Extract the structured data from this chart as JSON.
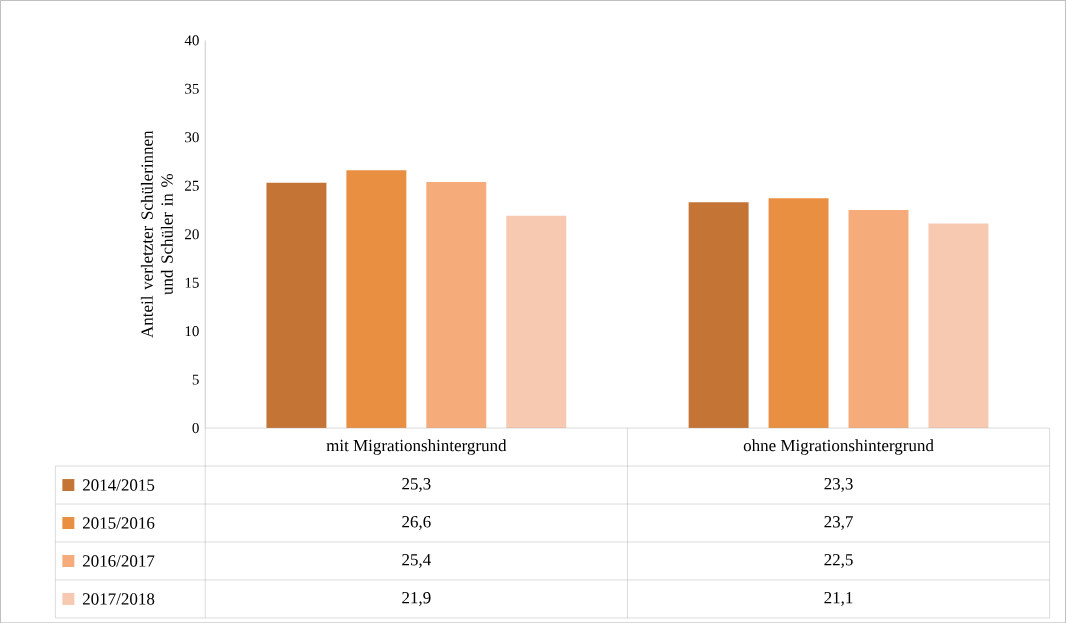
{
  "chart_data": {
    "type": "bar",
    "ylabel": "Anteil verletzter  Schülerinnen und Schüler in %",
    "categories": [
      "mit Migrationshintergrund",
      "ohne Migrationshintergrund"
    ],
    "series": [
      {
        "name": "2014/2015",
        "color": "#c47535",
        "values": [
          25.3,
          23.3
        ],
        "value_labels": [
          "25,3",
          "23,3"
        ]
      },
      {
        "name": "2015/2016",
        "color": "#e88f42",
        "values": [
          26.6,
          23.7
        ],
        "value_labels": [
          "26,6",
          "23,7"
        ]
      },
      {
        "name": "2016/2017",
        "color": "#f6ab7a",
        "values": [
          25.4,
          22.5
        ],
        "value_labels": [
          "25,4",
          "22,5"
        ]
      },
      {
        "name": "2017/2018",
        "color": "#f8c9b1",
        "values": [
          21.9,
          21.1
        ],
        "value_labels": [
          "21,9",
          "21,1"
        ]
      }
    ],
    "ylim": [
      0,
      40
    ],
    "yticks": [
      0,
      5,
      10,
      15,
      20,
      25,
      30,
      35,
      40
    ],
    "grid": false,
    "legend": "bottom left"
  }
}
